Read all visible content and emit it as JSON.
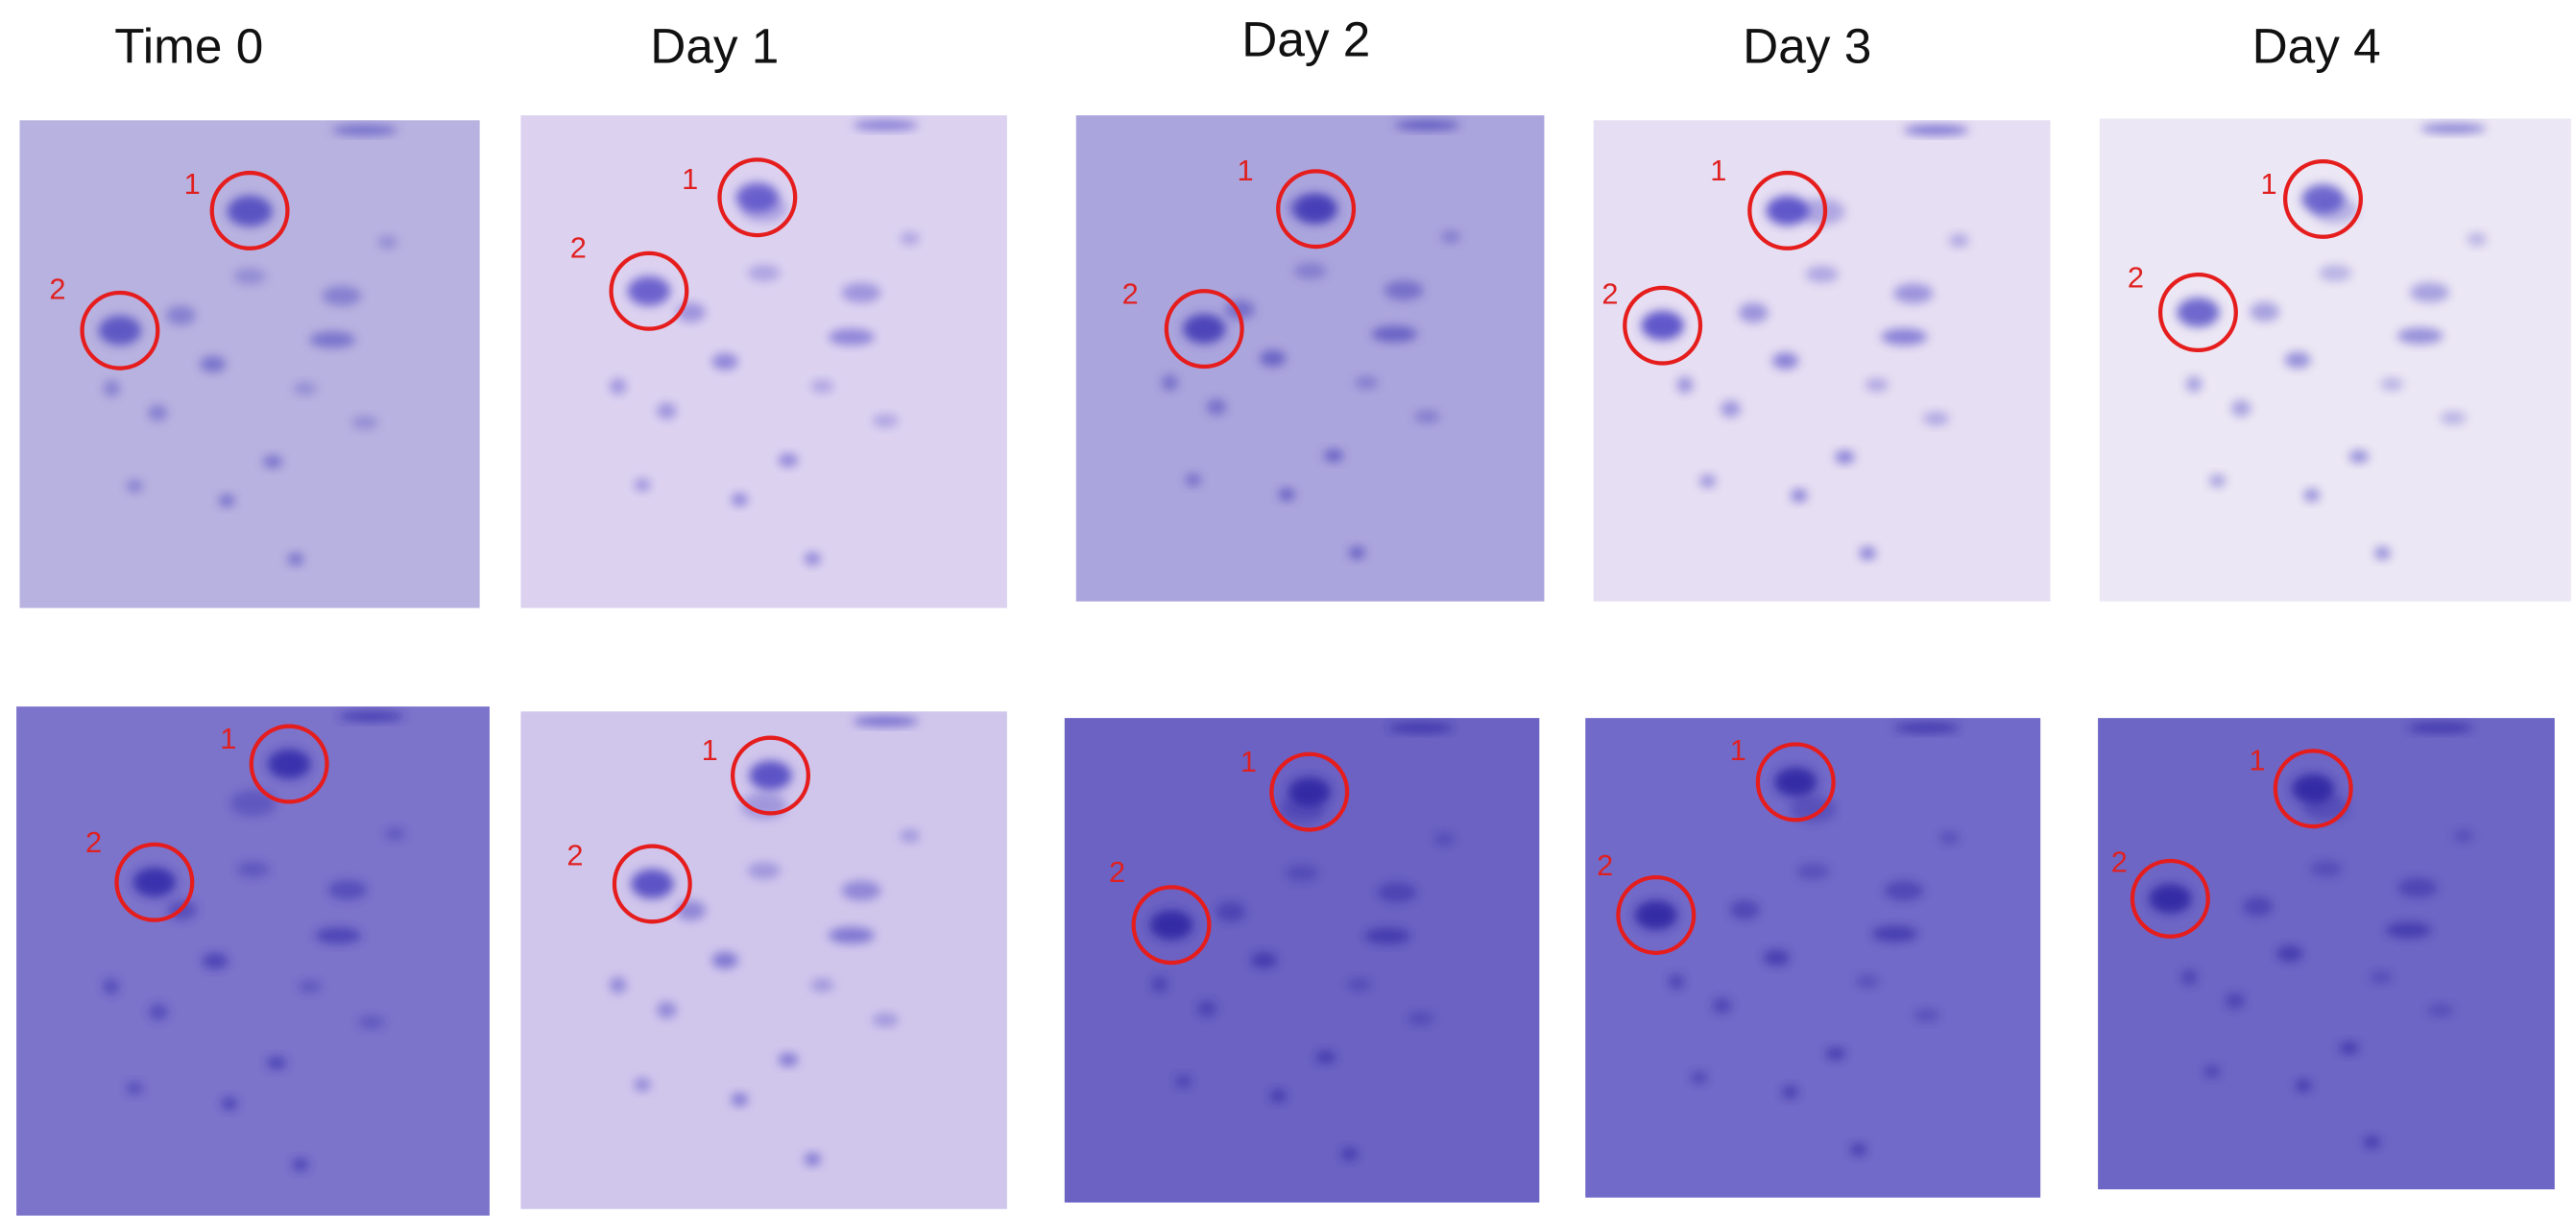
{
  "columns": [
    "Time 0",
    "Day 1",
    "Day 2",
    "Day 3",
    "Day 4"
  ],
  "gels": {
    "rows": [
      [
        {
          "markers": [
            "1",
            "2"
          ]
        },
        {
          "markers": [
            "1",
            "2"
          ]
        },
        {
          "markers": [
            "1",
            "2"
          ]
        },
        {
          "markers": [
            "1",
            "2"
          ]
        },
        {
          "markers": [
            "1",
            "2"
          ]
        }
      ],
      [
        {
          "markers": [
            "1",
            "2"
          ]
        },
        {
          "markers": [
            "1",
            "2"
          ]
        },
        {
          "markers": [
            "1",
            "2"
          ]
        },
        {
          "markers": [
            "1",
            "2"
          ]
        },
        {
          "markers": [
            "1",
            "2"
          ]
        }
      ]
    ]
  }
}
